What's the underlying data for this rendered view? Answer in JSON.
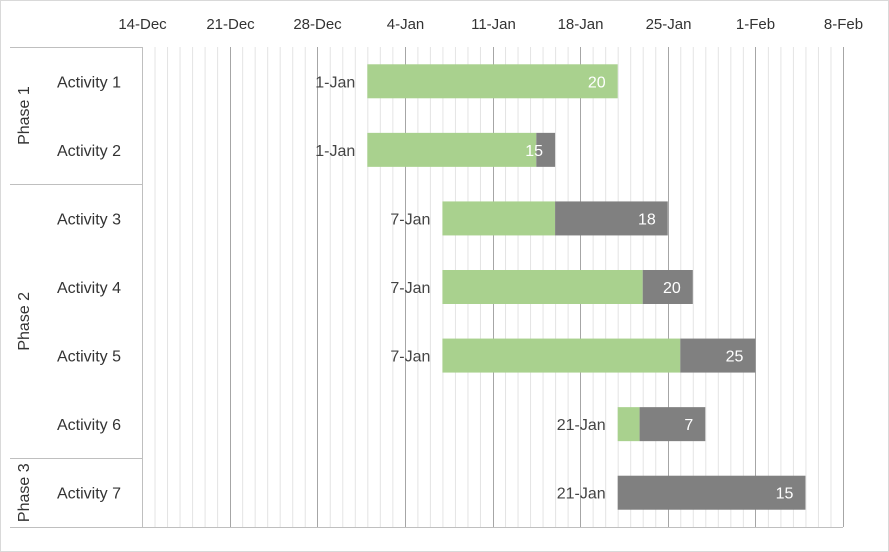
{
  "chart_data": {
    "type": "bar",
    "orientation": "horizontal-gantt",
    "x_ticks": [
      "14-Dec",
      "21-Dec",
      "28-Dec",
      "4-Jan",
      "11-Jan",
      "18-Jan",
      "25-Jan",
      "1-Feb",
      "8-Feb"
    ],
    "xlim": [
      "2017-12-14",
      "2018-02-08"
    ],
    "tick_step_days": 7,
    "phases": [
      {
        "label": "Phase 1",
        "activities": [
          "Activity 1",
          "Activity 2"
        ]
      },
      {
        "label": "Phase 2",
        "activities": [
          "Activity 3",
          "Activity 4",
          "Activity 5",
          "Activity 6"
        ]
      },
      {
        "label": "Phase 3",
        "activities": [
          "Activity 7"
        ]
      }
    ],
    "categories": [
      "Activity 1",
      "Activity 2",
      "Activity 3",
      "Activity 4",
      "Activity 5",
      "Activity 6",
      "Activity 7"
    ],
    "start_dates": [
      "2018-01-01",
      "2018-01-01",
      "2018-01-07",
      "2018-01-07",
      "2018-01-07",
      "2018-01-21",
      "2018-01-21"
    ],
    "start_labels": [
      "1-Jan",
      "1-Jan",
      "7-Jan",
      "7-Jan",
      "7-Jan",
      "21-Jan",
      "21-Jan"
    ],
    "series": [
      {
        "values": [
          20,
          13.5,
          9,
          16,
          19,
          1.75,
          0
        ],
        "color": "#a9d18e"
      },
      {
        "values": [
          0,
          1.5,
          9,
          4,
          6,
          5.25,
          15
        ],
        "color": "#808080"
      }
    ],
    "duration_labels": [
      "20",
      "15",
      "18",
      "20",
      "25",
      "7",
      "15"
    ],
    "grid": true,
    "legend": "none"
  }
}
